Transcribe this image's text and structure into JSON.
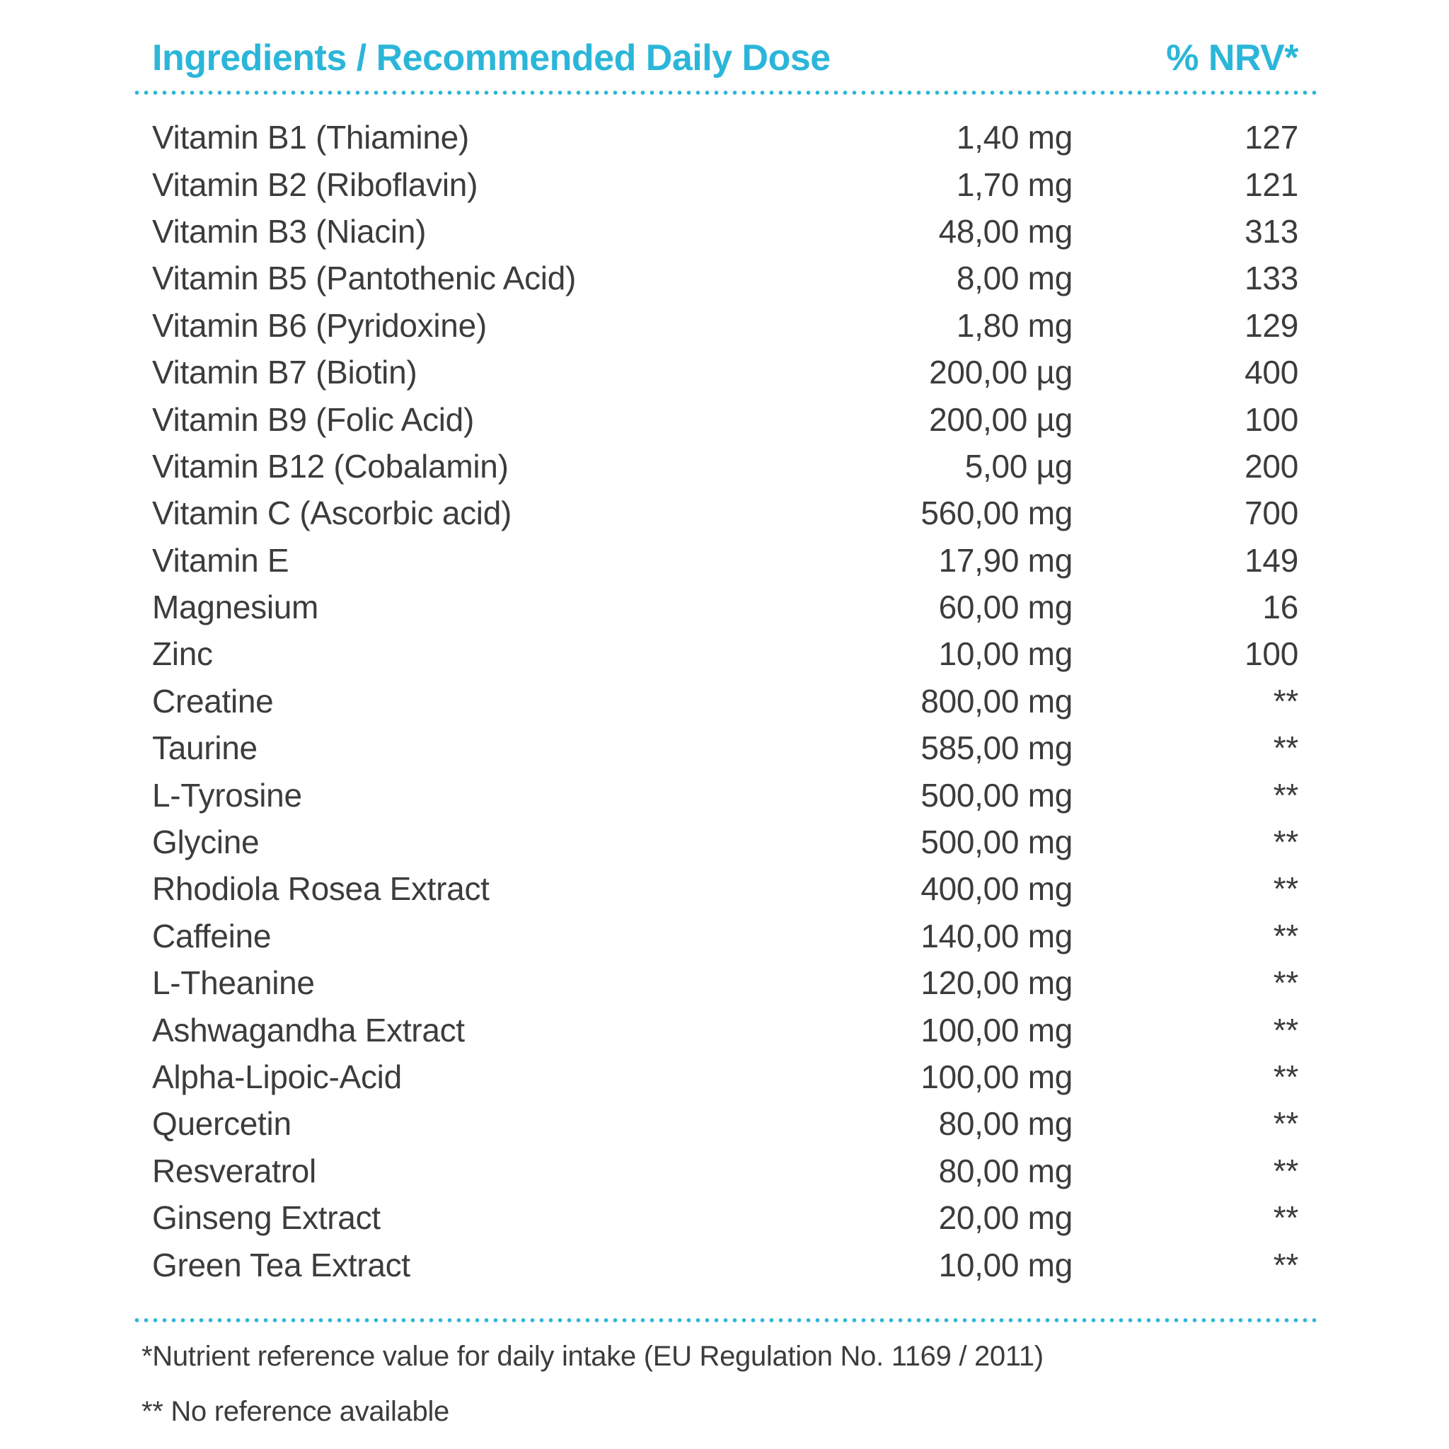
{
  "page": {
    "accent_color": "#2bb6d9",
    "text_color": "#3c3c3c"
  },
  "table": {
    "header": {
      "ingredients_label": "Ingredients / Recommended Daily Dose",
      "nrv_label": "% NRV*"
    },
    "rows": [
      {
        "name": "Vitamin B1 (Thiamine)",
        "amount": "1,40 mg",
        "nrv": "127"
      },
      {
        "name": "Vitamin B2 (Riboflavin)",
        "amount": "1,70 mg",
        "nrv": "121"
      },
      {
        "name": "Vitamin B3 (Niacin)",
        "amount": "48,00 mg",
        "nrv": "313"
      },
      {
        "name": "Vitamin B5 (Pantothenic Acid)",
        "amount": "8,00 mg",
        "nrv": "133"
      },
      {
        "name": "Vitamin B6 (Pyridoxine)",
        "amount": "1,80 mg",
        "nrv": "129"
      },
      {
        "name": "Vitamin B7 (Biotin)",
        "amount": "200,00 µg",
        "nrv": "400"
      },
      {
        "name": "Vitamin B9 (Folic Acid)",
        "amount": "200,00 µg",
        "nrv": "100"
      },
      {
        "name": "Vitamin B12 (Cobalamin)",
        "amount": "5,00 µg",
        "nrv": "200"
      },
      {
        "name": "Vitamin C (Ascorbic acid)",
        "amount": "560,00 mg",
        "nrv": "700"
      },
      {
        "name": "Vitamin E",
        "amount": "17,90 mg",
        "nrv": "149"
      },
      {
        "name": "Magnesium",
        "amount": "60,00 mg",
        "nrv": "16"
      },
      {
        "name": "Zinc",
        "amount": "10,00 mg",
        "nrv": "100"
      },
      {
        "name": "Creatine",
        "amount": "800,00 mg",
        "nrv": "**"
      },
      {
        "name": "Taurine",
        "amount": "585,00 mg",
        "nrv": "**"
      },
      {
        "name": "L-Tyrosine",
        "amount": "500,00 mg",
        "nrv": "**"
      },
      {
        "name": "Glycine",
        "amount": "500,00 mg",
        "nrv": "**"
      },
      {
        "name": "Rhodiola Rosea Extract",
        "amount": "400,00 mg",
        "nrv": "**"
      },
      {
        "name": "Caffeine",
        "amount": "140,00 mg",
        "nrv": "**"
      },
      {
        "name": "L-Theanine",
        "amount": "120,00 mg",
        "nrv": "**"
      },
      {
        "name": "Ashwagandha Extract",
        "amount": "100,00 mg",
        "nrv": "**"
      },
      {
        "name": "Alpha-Lipoic-Acid",
        "amount": "100,00 mg",
        "nrv": "**"
      },
      {
        "name": "Quercetin",
        "amount": "80,00 mg",
        "nrv": "**"
      },
      {
        "name": "Resveratrol",
        "amount": "80,00 mg",
        "nrv": "**"
      },
      {
        "name": "Ginseng Extract",
        "amount": "20,00 mg",
        "nrv": "**"
      },
      {
        "name": "Green Tea Extract",
        "amount": "10,00 mg",
        "nrv": "**"
      }
    ],
    "footnotes": {
      "nrv_note": "*Nutrient reference value for daily intake (EU Regulation No. 1169 / 2011)",
      "no_reference_note": "** No reference available"
    }
  }
}
